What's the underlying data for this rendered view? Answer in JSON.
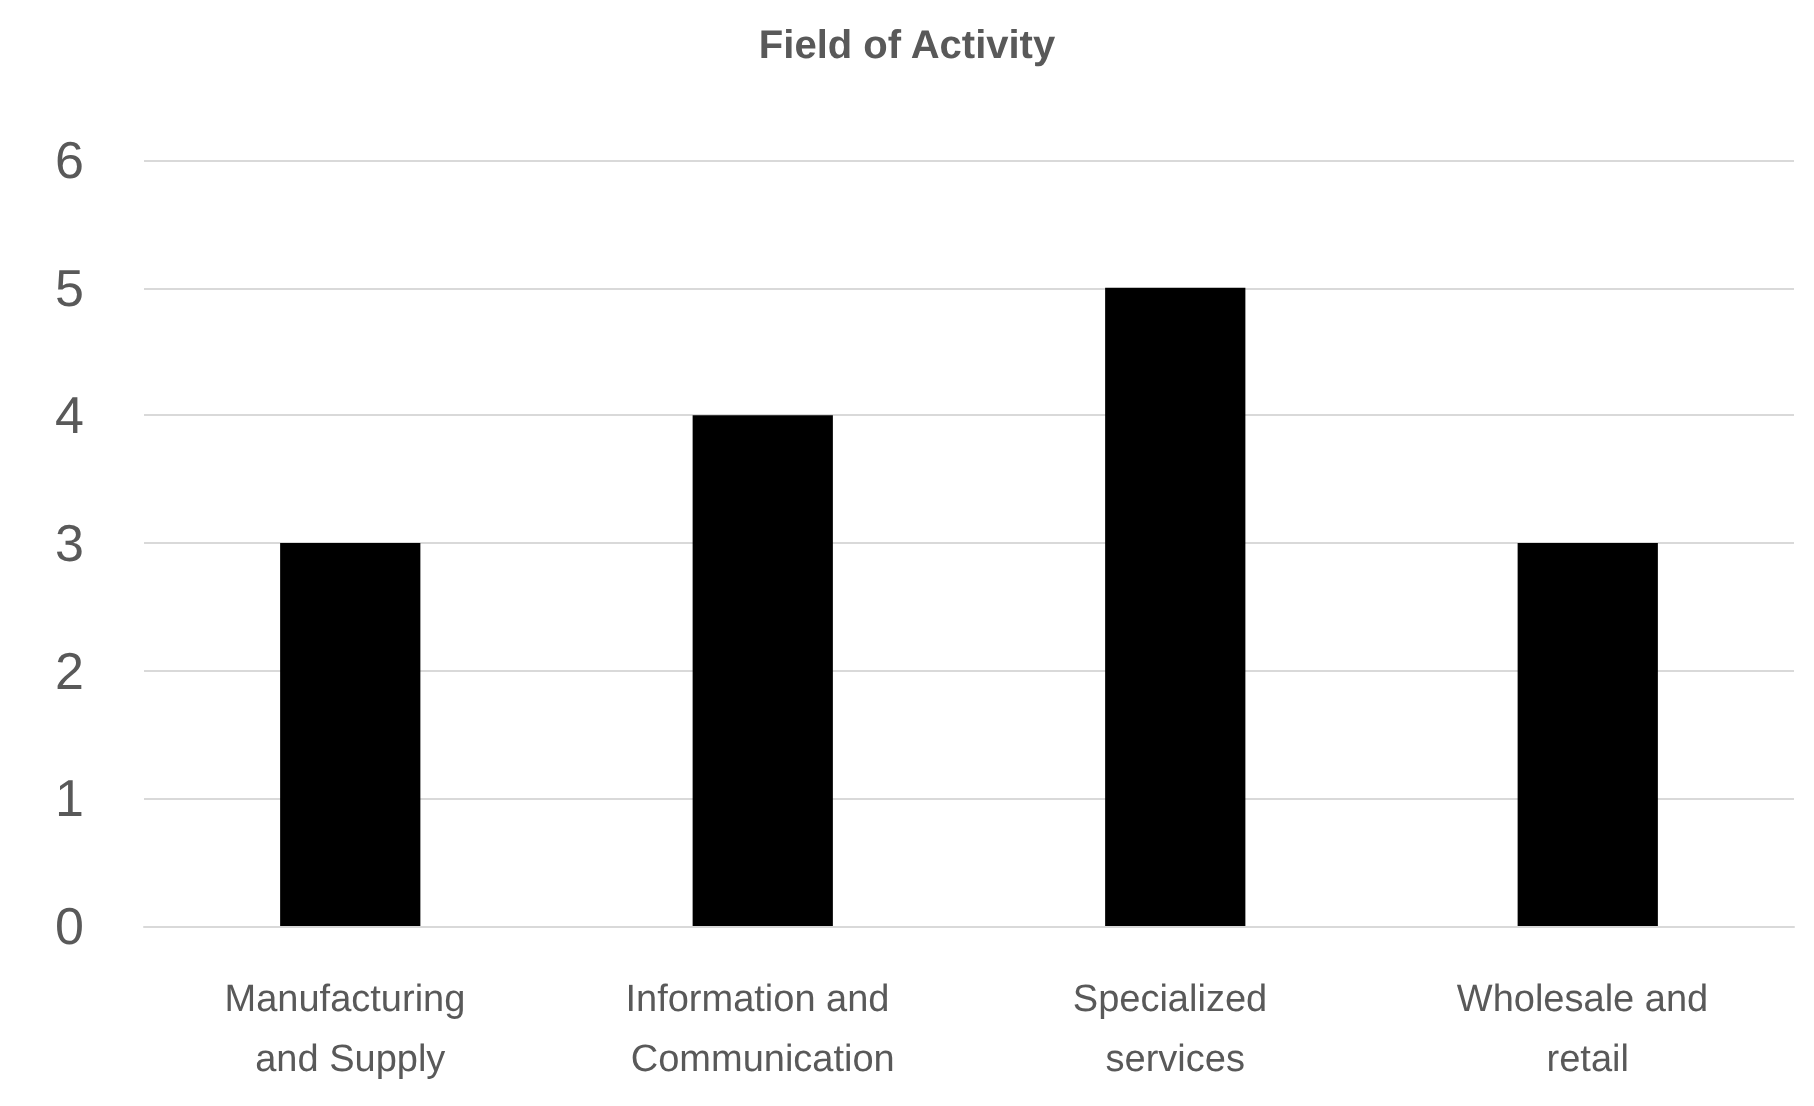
{
  "chart_data": {
    "type": "bar",
    "title": "Field of Activity",
    "categories": [
      "Manufacturing and Supply",
      "Information and Communication",
      "Specialized services",
      "Wholesale and retail"
    ],
    "values": [
      3,
      4,
      5,
      3
    ],
    "color": "#000000",
    "ylim": [
      0,
      6
    ],
    "yticks": [
      0,
      1,
      2,
      3,
      4,
      5,
      6
    ],
    "grid": "y"
  }
}
